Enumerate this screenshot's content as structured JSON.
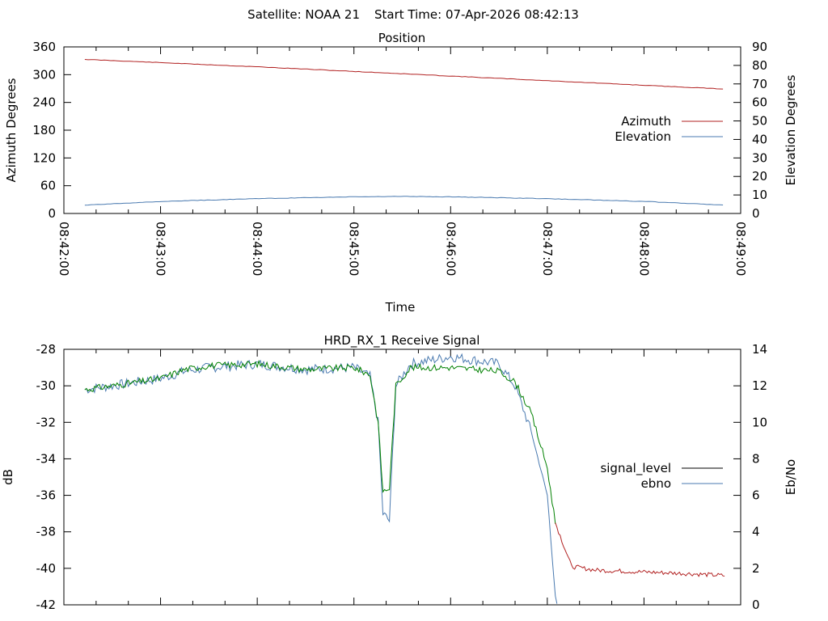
{
  "header": {
    "satellite_label": "Satellite: NOAA 21",
    "start_time_label": "Start Time: 07-Apr-2026 08:42:13"
  },
  "chart_data": [
    {
      "type": "line",
      "title": "Position",
      "xlabel": "Time",
      "ylabel": "Azimuth Degrees",
      "y2label": "Elevation Degrees",
      "xlim": [
        "08:42:00",
        "08:49:00"
      ],
      "ylim": [
        0,
        360
      ],
      "y2lim": [
        0,
        90
      ],
      "x_ticks": [
        "08:42:00",
        "08:43:00",
        "08:44:00",
        "08:45:00",
        "08:46:00",
        "08:47:00",
        "08:48:00",
        "08:49:00"
      ],
      "y_ticks": [
        "0",
        "60",
        "120",
        "180",
        "240",
        "300",
        "360"
      ],
      "y2_ticks": [
        "0",
        "10",
        "20",
        "30",
        "40",
        "50",
        "60",
        "70",
        "80",
        "90"
      ],
      "legend_position": "right",
      "grid": false,
      "series": [
        {
          "name": "Azimuth",
          "axis": "left",
          "color": "#b22222",
          "x": [
            "08:42:13",
            "08:43:00",
            "08:44:00",
            "08:45:00",
            "08:46:00",
            "08:47:00",
            "08:48:00",
            "08:48:50"
          ],
          "values": [
            333,
            326,
            317,
            307,
            297,
            287,
            277,
            269
          ]
        },
        {
          "name": "Elevation",
          "axis": "right",
          "color": "#4a7ab0",
          "x": [
            "08:42:13",
            "08:43:00",
            "08:44:00",
            "08:45:00",
            "08:45:30",
            "08:46:00",
            "08:47:00",
            "08:48:00",
            "08:48:50"
          ],
          "values": [
            4.5,
            6.5,
            8.0,
            9.0,
            9.2,
            9.0,
            8.0,
            6.5,
            4.5
          ]
        }
      ]
    },
    {
      "type": "line",
      "title": "HRD_RX_1 Receive Signal",
      "ylabel": "dB",
      "y2label": "Eb/No",
      "xlim": [
        "08:42:00",
        "08:49:00"
      ],
      "ylim": [
        -42,
        -28
      ],
      "y2lim": [
        0,
        14
      ],
      "y_ticks": [
        "-28",
        "-30",
        "-32",
        "-34",
        "-36",
        "-38",
        "-40",
        "-42"
      ],
      "y2_ticks": [
        "0",
        "2",
        "4",
        "6",
        "8",
        "10",
        "12",
        "14"
      ],
      "legend_position": "right",
      "grid": false,
      "series": [
        {
          "name": "signal_level",
          "legend_color": "#000000",
          "segments": [
            {
              "color": "#008000",
              "start": "08:42:13",
              "end": "08:47:05"
            },
            {
              "color": "#b22222",
              "start": "08:47:05",
              "end": "08:48:50"
            }
          ],
          "x": [
            "08:42:13",
            "08:42:30",
            "08:43:00",
            "08:43:15",
            "08:43:30",
            "08:44:00",
            "08:44:30",
            "08:45:00",
            "08:45:10",
            "08:45:15",
            "08:45:18",
            "08:45:22",
            "08:45:26",
            "08:45:35",
            "08:46:00",
            "08:46:30",
            "08:46:40",
            "08:46:50",
            "08:47:00",
            "08:47:05",
            "08:47:15",
            "08:47:30",
            "08:48:00",
            "08:48:30",
            "08:48:50"
          ],
          "values": [
            -30.2,
            -30.0,
            -29.6,
            -29.1,
            -28.9,
            -28.8,
            -29.1,
            -29.0,
            -29.4,
            -32.0,
            -35.8,
            -35.6,
            -30.0,
            -29.0,
            -29.0,
            -29.2,
            -29.8,
            -31.5,
            -34.5,
            -37.5,
            -39.9,
            -40.1,
            -40.2,
            -40.3,
            -40.4
          ]
        },
        {
          "name": "ebno",
          "color": "#4a7ab0",
          "x": [
            "08:42:13",
            "08:42:30",
            "08:43:00",
            "08:43:15",
            "08:43:30",
            "08:44:00",
            "08:44:30",
            "08:45:00",
            "08:45:10",
            "08:45:15",
            "08:45:18",
            "08:45:22",
            "08:45:26",
            "08:45:35",
            "08:46:00",
            "08:46:30",
            "08:46:40",
            "08:46:50",
            "08:47:00",
            "08:47:05",
            "08:47:06"
          ],
          "values": [
            11.8,
            12.0,
            12.4,
            12.8,
            13.0,
            13.2,
            12.9,
            13.0,
            12.5,
            10.0,
            5.0,
            4.6,
            12.0,
            13.2,
            13.6,
            13.2,
            12.0,
            9.5,
            6.0,
            0.5,
            0
          ]
        }
      ]
    }
  ]
}
